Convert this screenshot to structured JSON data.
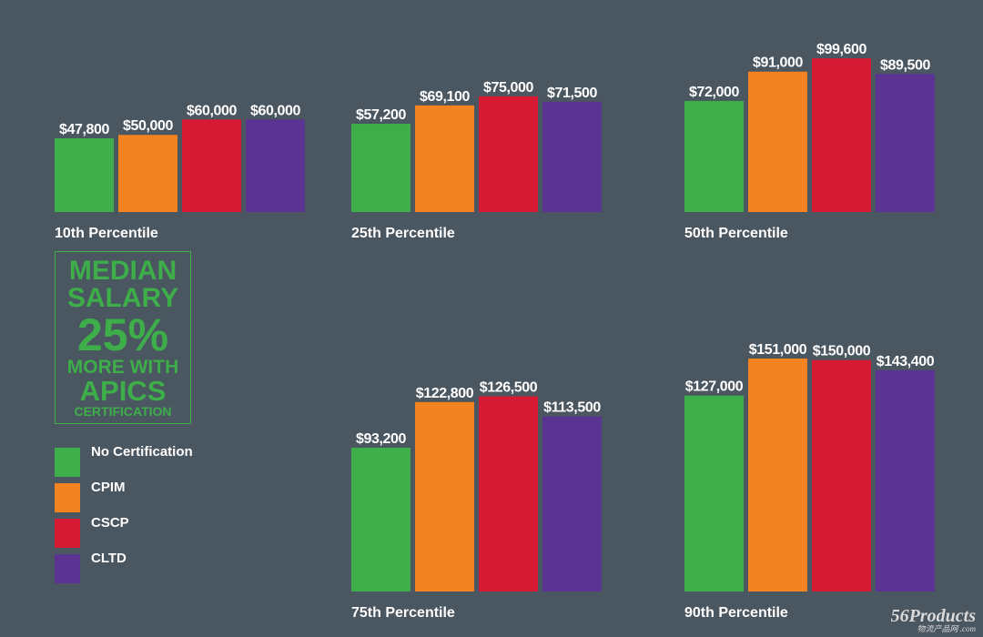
{
  "chart_data": [
    {
      "type": "bar",
      "title": "10th Percentile",
      "categories": [
        "No Certification",
        "CPIM",
        "CSCP",
        "CLTD"
      ],
      "values": [
        47800,
        50000,
        60000,
        60000
      ],
      "labels": [
        "$47,800",
        "$50,000",
        "$60,000",
        "$60,000"
      ]
    },
    {
      "type": "bar",
      "title": "25th Percentile",
      "categories": [
        "No Certification",
        "CPIM",
        "CSCP",
        "CLTD"
      ],
      "values": [
        57200,
        69100,
        75000,
        71500
      ],
      "labels": [
        "$57,200",
        "$69,100",
        "$75,000",
        "$71,500"
      ]
    },
    {
      "type": "bar",
      "title": "50th Percentile",
      "categories": [
        "No Certification",
        "CPIM",
        "CSCP",
        "CLTD"
      ],
      "values": [
        72000,
        91000,
        99600,
        89500
      ],
      "labels": [
        "$72,000",
        "$91,000",
        "$99,600",
        "$89,500"
      ]
    },
    {
      "type": "bar",
      "title": "75th Percentile",
      "categories": [
        "No Certification",
        "CPIM",
        "CSCP",
        "CLTD"
      ],
      "values": [
        93200,
        122800,
        126500,
        113500
      ],
      "labels": [
        "$93,200",
        "$122,800",
        "$126,500",
        "$113,500"
      ]
    },
    {
      "type": "bar",
      "title": "90th Percentile",
      "categories": [
        "No Certification",
        "CPIM",
        "CSCP",
        "CLTD"
      ],
      "values": [
        127000,
        151000,
        150000,
        143400
      ],
      "labels": [
        "$127,000",
        "$151,000",
        "$150,000",
        "$143,400"
      ]
    }
  ],
  "legend": [
    {
      "label": "No Certification",
      "color": "#3dae49"
    },
    {
      "label": "CPIM",
      "color": "#f38220"
    },
    {
      "label": "CSCP",
      "color": "#d71a33"
    },
    {
      "label": "CLTD",
      "color": "#5b3393"
    }
  ],
  "callout": {
    "line1": "MEDIAN",
    "line2": "SALARY",
    "line3": "25%",
    "line4": "MORE WITH",
    "line5": "APICS",
    "line6": "CERTIFICATION"
  },
  "watermark": {
    "main": "56Products",
    "sub": "物流产品网 .com"
  }
}
